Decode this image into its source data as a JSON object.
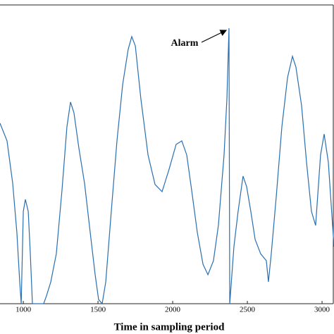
{
  "chart_data": {
    "type": "line",
    "x_label": "Time in sampling period",
    "annotation": "Alarm",
    "xlim": [
      844,
      3080
    ],
    "ylim": [
      0,
      100
    ],
    "xticks": [
      1000,
      1500,
      2000,
      2500,
      3000
    ],
    "grid": false,
    "series": [
      {
        "color": "#2a6fb0",
        "x": [
          844,
          891,
          929,
          957,
          976,
          986,
          1000,
          1014,
          1033,
          1047,
          1061,
          1136,
          1155,
          1184,
          1221,
          1259,
          1292,
          1316,
          1339,
          1372,
          1410,
          1448,
          1481,
          1504,
          1528,
          1552,
          1589,
          1627,
          1665,
          1702,
          1726,
          1750,
          1787,
          1835,
          1882,
          1929,
          1976,
          2023,
          2061,
          2094,
          2127,
          2165,
          2203,
          2236,
          2273,
          2306,
          2344,
          2363,
          2377,
          2382,
          2386,
          2410,
          2438,
          2471,
          2495,
          2523,
          2552,
          2589,
          2627,
          2641,
          2660,
          2693,
          2731,
          2769,
          2802,
          2825,
          2863,
          2896,
          2929,
          2957,
          2990,
          3014,
          3042,
          3080
        ],
        "values": [
          60.4,
          54.5,
          40.3,
          23.8,
          7.3,
          0,
          30.9,
          34.9,
          30.9,
          16.7,
          0,
          0,
          2.6,
          7.3,
          16.7,
          38.0,
          59.2,
          67.5,
          63.9,
          52.1,
          40.3,
          23.8,
          9.7,
          1.4,
          0,
          7.3,
          30.9,
          54.5,
          73.3,
          85.1,
          89.4,
          86.3,
          68.6,
          49.8,
          39.9,
          37.5,
          45.0,
          53.3,
          54.5,
          49.8,
          38.0,
          23.8,
          13.2,
          9.7,
          14.4,
          26.2,
          49.8,
          68.6,
          92.2,
          0,
          2.6,
          19.1,
          30.9,
          42.7,
          39.2,
          30.9,
          21.5,
          16.7,
          14.4,
          7.3,
          16.7,
          35.6,
          59.2,
          75.7,
          82.8,
          79.2,
          66.3,
          47.4,
          30.9,
          26.2,
          49.8,
          56.8,
          47.4,
          19.1
        ]
      }
    ]
  }
}
